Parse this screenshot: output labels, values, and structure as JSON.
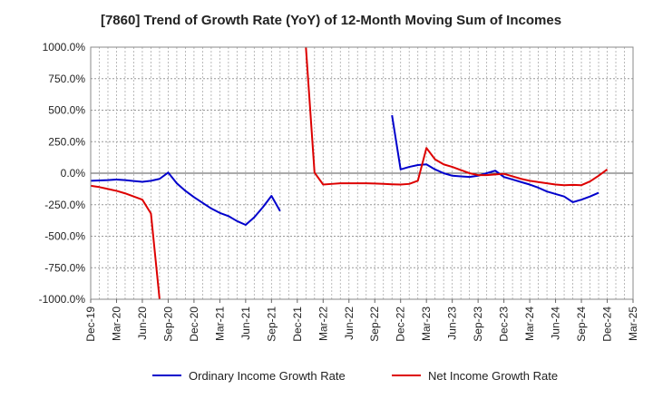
{
  "chart_data": {
    "type": "line",
    "title": "[7860]  Trend of Growth Rate (YoY) of 12-Month Moving Sum of Incomes",
    "xlabel": "",
    "ylabel": "",
    "ylim": [
      -1000,
      1000
    ],
    "yticks": [
      1000,
      750,
      500,
      250,
      0,
      -250,
      -500,
      -750,
      -1000
    ],
    "ytick_labels": [
      "1000.0%",
      "750.0%",
      "500.0%",
      "250.0%",
      "0.0%",
      "-250.0%",
      "-500.0%",
      "-750.0%",
      "-1000.0%"
    ],
    "xtick_labels": [
      "Dec-19",
      "Mar-20",
      "Jun-20",
      "Sep-20",
      "Dec-20",
      "Mar-21",
      "Jun-21",
      "Sep-21",
      "Dec-21",
      "Mar-22",
      "Jun-22",
      "Sep-22",
      "Dec-22",
      "Mar-23",
      "Jun-23",
      "Sep-23",
      "Dec-23",
      "Mar-24",
      "Jun-24",
      "Sep-24",
      "Dec-24",
      "Mar-25"
    ],
    "grid": true,
    "legend_position": "bottom",
    "series": [
      {
        "name": "Ordinary Income Growth Rate",
        "color": "#0000cc",
        "values": [
          -60,
          -58,
          -55,
          -50,
          -55,
          -62,
          -68,
          -60,
          -45,
          5,
          -80,
          -140,
          -190,
          -235,
          -280,
          -315,
          -340,
          -380,
          -410,
          -350,
          -270,
          -180,
          -300,
          null,
          null,
          null,
          null,
          null,
          null,
          null,
          null,
          null,
          null,
          null,
          null,
          460,
          30,
          50,
          65,
          70,
          30,
          0,
          -20,
          -25,
          -30,
          -20,
          0,
          20,
          -30,
          -50,
          -70,
          -90,
          -115,
          -145,
          -165,
          -185,
          -230,
          -210,
          -185,
          -155
        ]
      },
      {
        "name": "Net Income Growth Rate",
        "color": "#dd0000",
        "values": [
          -100,
          -110,
          -125,
          -140,
          -160,
          -185,
          -210,
          -320,
          -1000,
          null,
          null,
          null,
          null,
          null,
          null,
          null,
          null,
          null,
          null,
          null,
          null,
          null,
          null,
          null,
          null,
          1000,
          5,
          -90,
          -85,
          -80,
          -80,
          -80,
          -80,
          -82,
          -85,
          -88,
          -90,
          -85,
          -60,
          200,
          110,
          70,
          50,
          25,
          0,
          -15,
          -15,
          -10,
          -5,
          -25,
          -45,
          -60,
          -70,
          -80,
          -90,
          -95,
          -93,
          -95,
          -65,
          -20,
          30
        ]
      }
    ]
  }
}
